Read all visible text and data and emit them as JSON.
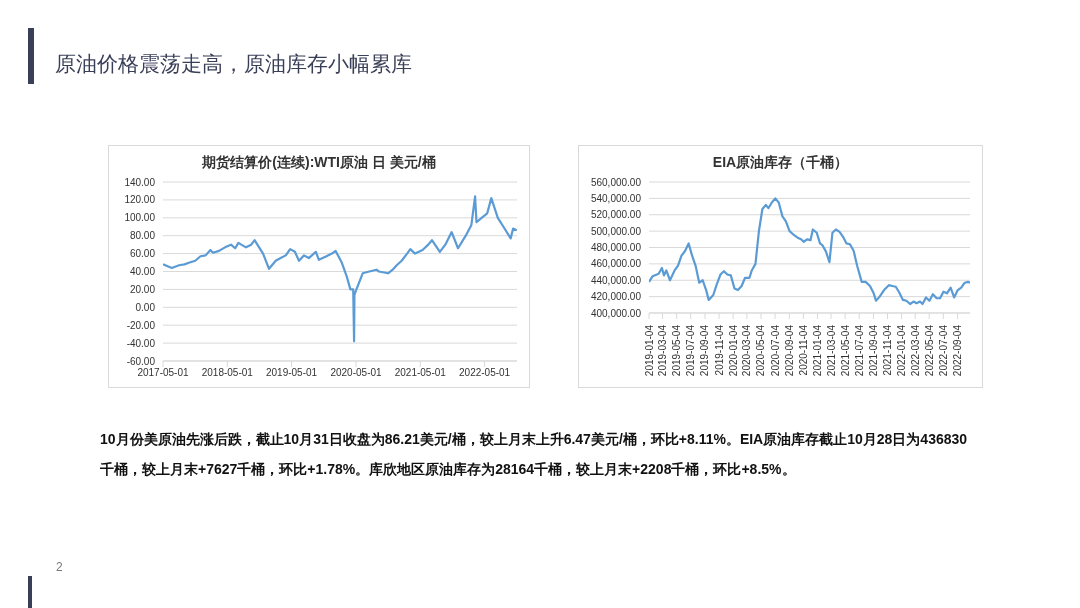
{
  "chart_data": [
    {
      "type": "other",
      "title": "原油价格震荡走高，原油库存小幅累库",
      "annotations": [
        "10月份美原油先涨后跌，截止10月31日收盘为86.21美元/桶，较上月末上升6.47美元/桶，环比+8.11%。EIA原油库存截止10月28日为436830千桶，较上月末+7627千桶，环比+1.78%。库欣地区原油库存为28164千桶，较上月末+2208千桶，环比+8.5%。",
        "2"
      ]
    },
    {
      "type": "line",
      "title": "期货结算价(连续):WTI原油 日 美元/桶",
      "grid": "y",
      "x": [
        "2017-05-01",
        "2017-06-20",
        "2017-07-31",
        "2017-08-31",
        "2017-09-29",
        "2017-10-31",
        "2017-11-30",
        "2017-12-29",
        "2018-01-25",
        "2018-02-09",
        "2018-03-15",
        "2018-04-18",
        "2018-05-22",
        "2018-06-15",
        "2018-07-03",
        "2018-08-15",
        "2018-09-14",
        "2018-10-03",
        "2018-11-20",
        "2018-12-24",
        "2019-01-31",
        "2019-02-28",
        "2019-03-29",
        "2019-04-23",
        "2019-05-20",
        "2019-06-12",
        "2019-07-10",
        "2019-08-07",
        "2019-09-16",
        "2019-10-03",
        "2019-11-15",
        "2019-12-16",
        "2020-01-06",
        "2020-02-10",
        "2020-03-10",
        "2020-03-30",
        "2020-04-15",
        "2020-04-20",
        "2020-04-22",
        "2020-05-01",
        "2020-06-08",
        "2020-07-15",
        "2020-08-25",
        "2020-09-08",
        "2020-10-30",
        "2020-11-25",
        "2020-12-18",
        "2021-01-15",
        "2021-02-15",
        "2021-03-05",
        "2021-04-01",
        "2021-05-14",
        "2021-06-15",
        "2021-07-06",
        "2021-08-20",
        "2021-09-20",
        "2021-10-26",
        "2021-12-01",
        "2022-01-14",
        "2022-02-15",
        "2022-03-08",
        "2022-03-16",
        "2022-04-14",
        "2022-05-16",
        "2022-06-08",
        "2022-07-15",
        "2022-08-16",
        "2022-09-26",
        "2022-10-10",
        "2022-10-31"
      ],
      "series": [
        {
          "color": "#5b9bd5",
          "values": [
            48,
            44,
            47,
            48,
            50,
            52,
            57,
            58,
            64,
            61,
            63,
            67,
            70,
            66,
            72,
            67,
            70,
            75,
            60,
            43,
            52,
            55,
            58,
            65,
            62,
            52,
            58,
            55,
            62,
            53,
            57,
            60,
            63,
            50,
            34,
            20,
            20,
            -38,
            14,
            19,
            38,
            40,
            42,
            40,
            38,
            42,
            47,
            52,
            60,
            65,
            60,
            64,
            70,
            75,
            62,
            70,
            84,
            66,
            80,
            92,
            124,
            95,
            100,
            105,
            122,
            100,
            90,
            77,
            88,
            86
          ]
        }
      ],
      "xlim": [
        "2017-05-01",
        "2022-11-01"
      ],
      "xticks": [
        "2017-05-01",
        "2018-05-01",
        "2019-05-01",
        "2020-05-01",
        "2021-05-01",
        "2022-05-01"
      ],
      "ylim": [
        -60,
        140
      ],
      "yticks": [
        {
          "value": -60,
          "label": "-60.00"
        },
        {
          "value": -40,
          "label": "-40.00"
        },
        {
          "value": -20,
          "label": "-20.00"
        },
        {
          "value": 0,
          "label": "0.00"
        },
        {
          "value": 20,
          "label": "20.00"
        },
        {
          "value": 40,
          "label": "40.00"
        },
        {
          "value": 60,
          "label": "60.00"
        },
        {
          "value": 80,
          "label": "80.00"
        },
        {
          "value": 100,
          "label": "100.00"
        },
        {
          "value": 120,
          "label": "120.00"
        },
        {
          "value": 140,
          "label": "140.00"
        }
      ]
    },
    {
      "type": "line",
      "title": "EIA原油库存（千桶）",
      "grid": "y",
      "x": [
        "2019-01-04",
        "2019-01-20",
        "2019-02-15",
        "2019-03-01",
        "2019-03-10",
        "2019-03-20",
        "2019-04-05",
        "2019-04-25",
        "2019-05-10",
        "2019-05-25",
        "2019-06-10",
        "2019-06-25",
        "2019-07-10",
        "2019-07-25",
        "2019-08-10",
        "2019-08-25",
        "2019-09-10",
        "2019-09-20",
        "2019-10-10",
        "2019-10-25",
        "2019-11-10",
        "2019-11-25",
        "2019-12-10",
        "2019-12-25",
        "2020-01-10",
        "2020-01-25",
        "2020-02-10",
        "2020-02-25",
        "2020-03-15",
        "2020-03-25",
        "2020-04-10",
        "2020-04-25",
        "2020-05-10",
        "2020-05-25",
        "2020-06-05",
        "2020-06-20",
        "2020-07-05",
        "2020-07-20",
        "2020-08-05",
        "2020-08-20",
        "2020-09-05",
        "2020-09-25",
        "2020-10-10",
        "2020-10-25",
        "2020-11-05",
        "2020-11-20",
        "2020-12-05",
        "2020-12-15",
        "2021-01-01",
        "2021-01-15",
        "2021-01-25",
        "2021-02-10",
        "2021-02-25",
        "2021-03-10",
        "2021-03-25",
        "2021-04-10",
        "2021-04-25",
        "2021-05-10",
        "2021-05-25",
        "2021-06-10",
        "2021-06-25",
        "2021-07-15",
        "2021-08-01",
        "2021-08-20",
        "2021-09-05",
        "2021-09-15",
        "2021-10-01",
        "2021-10-20",
        "2021-11-10",
        "2021-11-25",
        "2021-12-10",
        "2021-12-25",
        "2022-01-10",
        "2022-01-25",
        "2022-02-10",
        "2022-02-25",
        "2022-03-10",
        "2022-03-25",
        "2022-04-05",
        "2022-04-20",
        "2022-05-05",
        "2022-05-20",
        "2022-06-05",
        "2022-06-20",
        "2022-07-05",
        "2022-07-20",
        "2022-08-05",
        "2022-08-20",
        "2022-09-05",
        "2022-09-20",
        "2022-10-05",
        "2022-10-20",
        "2022-10-28"
      ],
      "series": [
        {
          "color": "#5b9bd5",
          "values": [
            438000,
            445000,
            448000,
            455000,
            446000,
            452000,
            440000,
            452000,
            458000,
            470000,
            476000,
            485000,
            470000,
            458000,
            437000,
            440000,
            427000,
            416000,
            422000,
            435000,
            447000,
            451000,
            447000,
            446000,
            430000,
            428000,
            433000,
            443000,
            443000,
            452000,
            460000,
            500000,
            527000,
            532000,
            528000,
            535000,
            540000,
            535000,
            518000,
            512000,
            500000,
            495000,
            492000,
            490000,
            487000,
            490000,
            489000,
            502000,
            498000,
            485000,
            483000,
            475000,
            462000,
            498000,
            502000,
            499000,
            493000,
            485000,
            484000,
            476000,
            458000,
            438000,
            438000,
            433000,
            424000,
            415000,
            420000,
            428000,
            434000,
            433000,
            432000,
            425000,
            416000,
            415000,
            411000,
            414000,
            412000,
            414000,
            411000,
            419000,
            415000,
            423000,
            418000,
            418000,
            426000,
            424000,
            431000,
            419000,
            428000,
            431000,
            437000,
            438000,
            437000
          ]
        }
      ],
      "xlim": [
        "2019-01-04",
        "2022-10-28"
      ],
      "xticks": [
        "2019-01-04",
        "2019-03-04",
        "2019-05-04",
        "2019-07-04",
        "2019-09-04",
        "2019-11-04",
        "2020-01-04",
        "2020-03-04",
        "2020-05-04",
        "2020-07-04",
        "2020-09-04",
        "2020-11-04",
        "2021-01-04",
        "2021-03-04",
        "2021-05-04",
        "2021-07-04",
        "2021-09-04",
        "2021-11-04",
        "2022-01-04",
        "2022-03-04",
        "2022-05-04",
        "2022-07-04",
        "2022-09-04"
      ],
      "ylim": [
        400000,
        560000
      ],
      "yticks": [
        {
          "value": 400000,
          "label": "400,000.00"
        },
        {
          "value": 420000,
          "label": "420,000.00"
        },
        {
          "value": 440000,
          "label": "440,000.00"
        },
        {
          "value": 460000,
          "label": "460,000.00"
        },
        {
          "value": 480000,
          "label": "480,000.00"
        },
        {
          "value": 500000,
          "label": "500,000.00"
        },
        {
          "value": 520000,
          "label": "520,000.00"
        },
        {
          "value": 540000,
          "label": "540,000.00"
        },
        {
          "value": 560000,
          "label": "560,000.00"
        }
      ]
    }
  ]
}
